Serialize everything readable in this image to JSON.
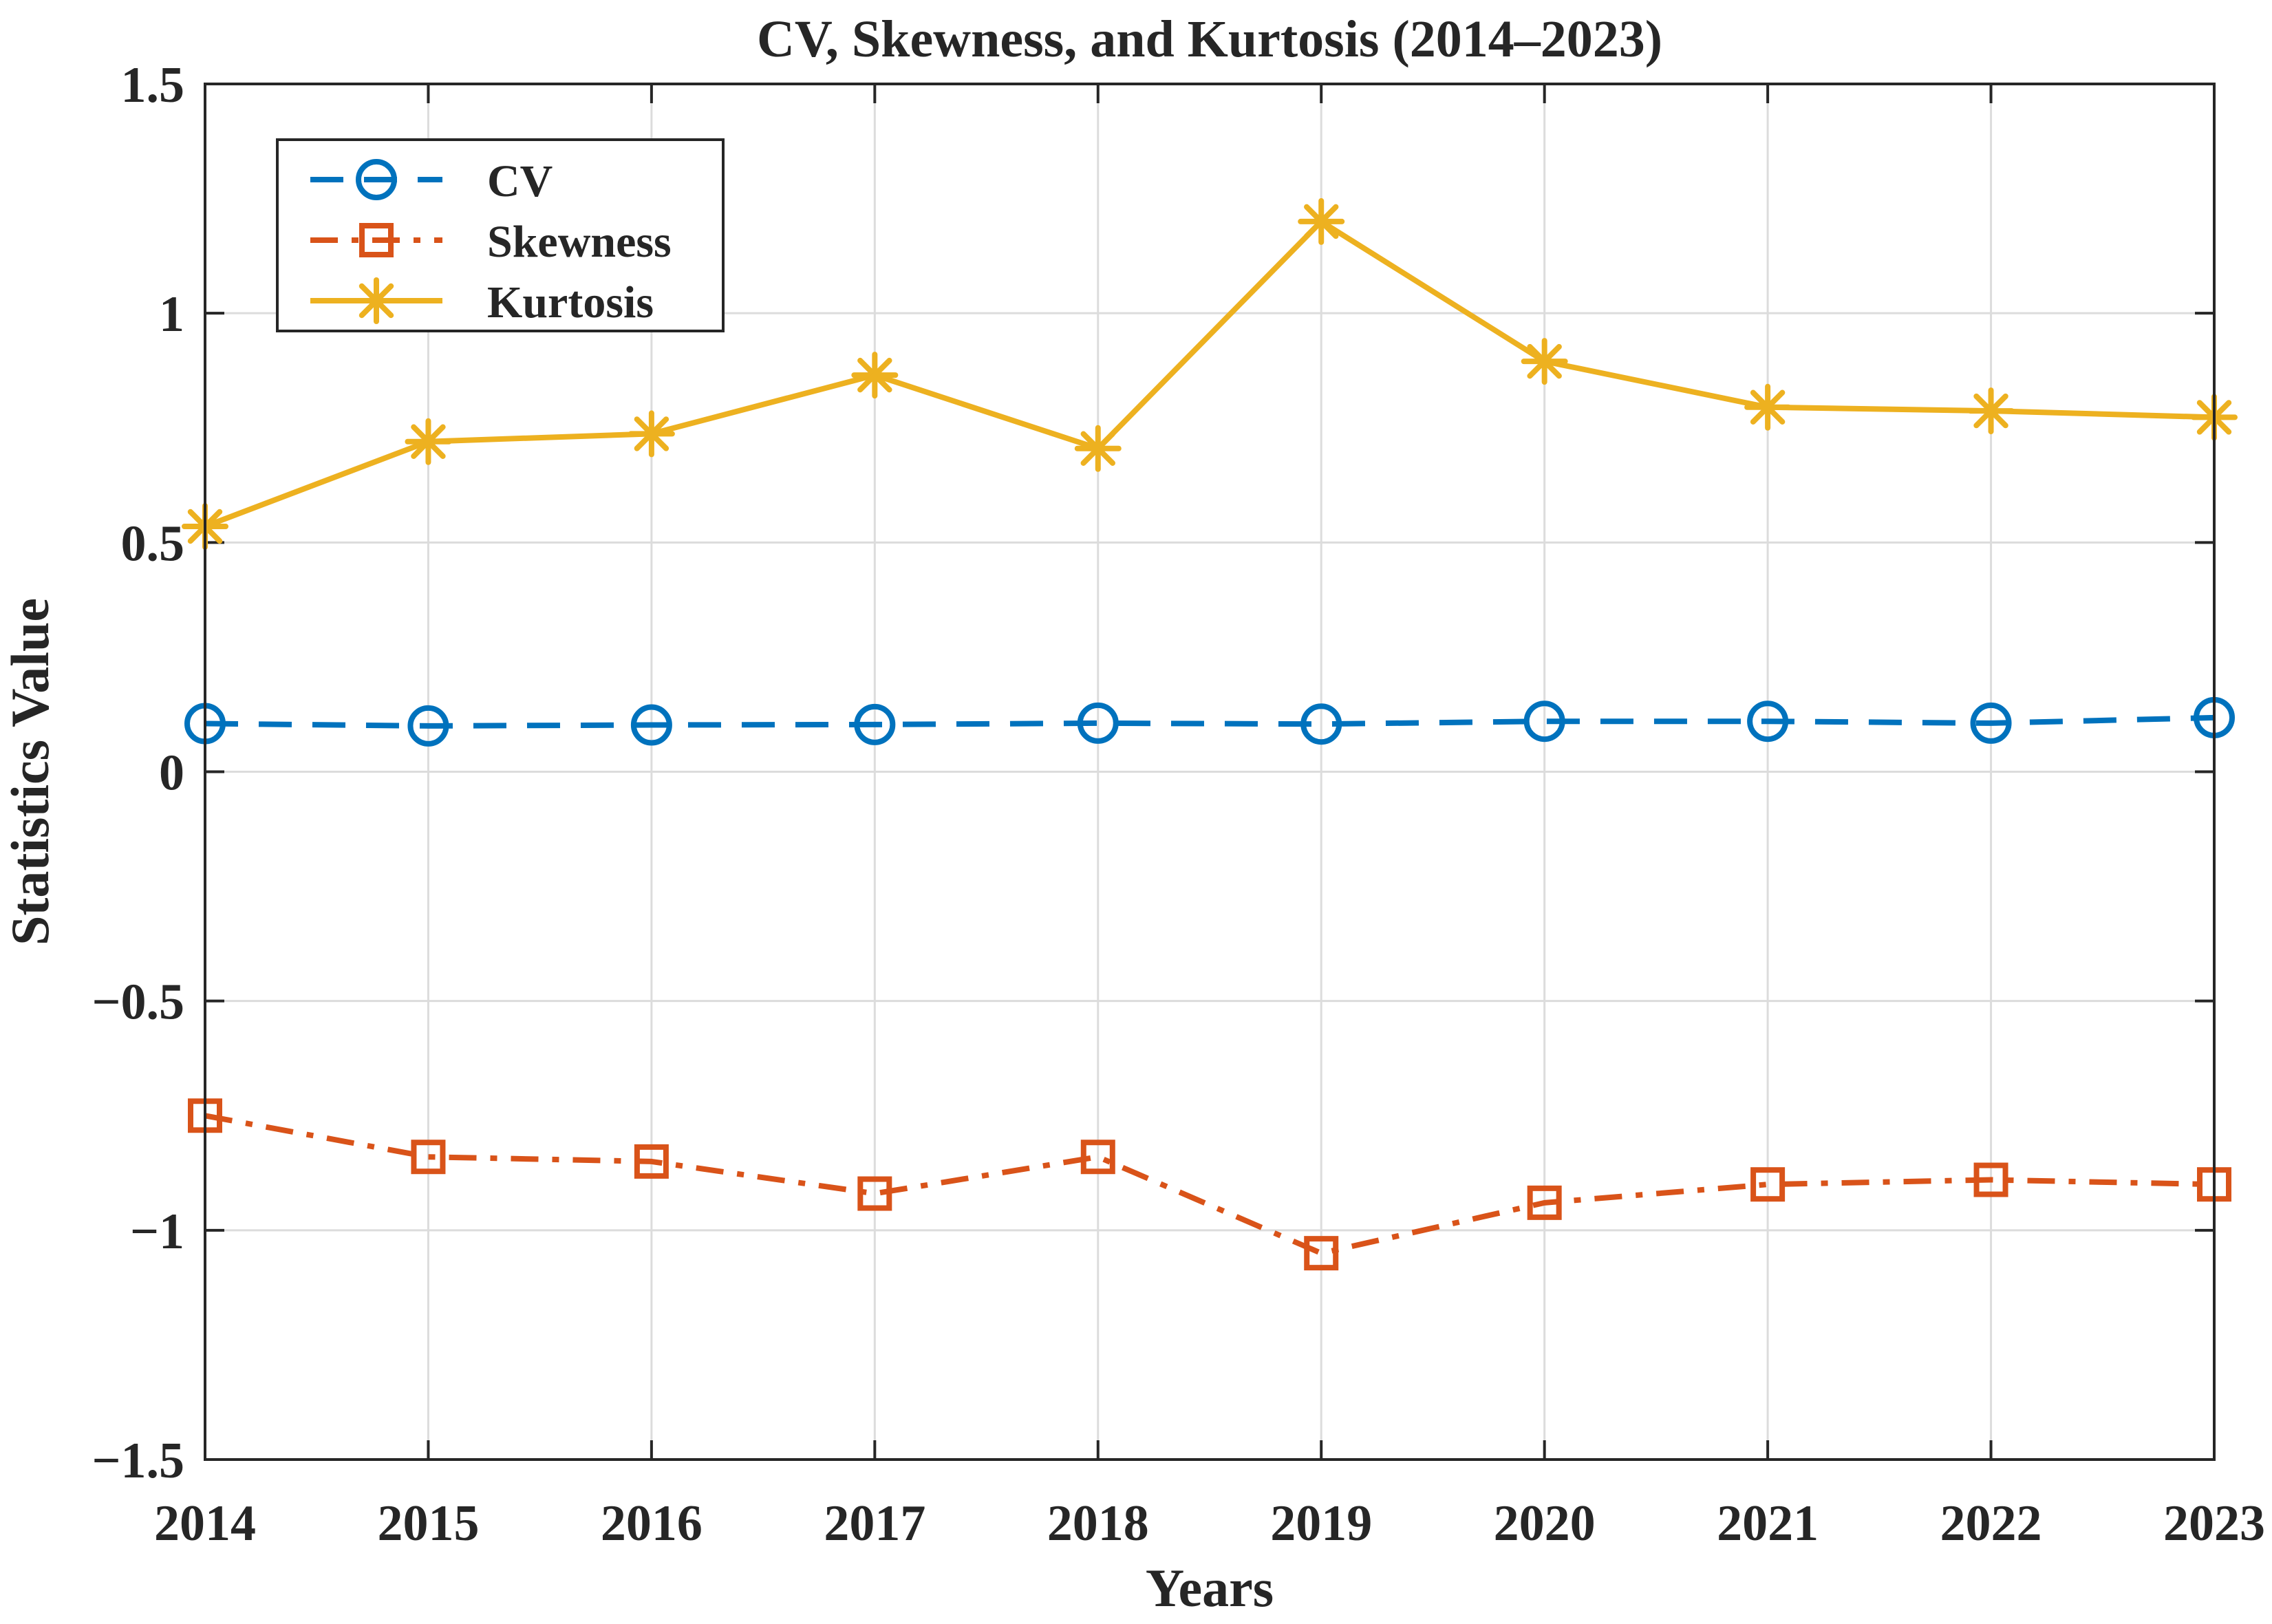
{
  "chart_data": {
    "type": "line",
    "title": "CV, Skewness, and Kurtosis (2014–2023)",
    "xlabel": "Years",
    "ylabel": "Statistics Value",
    "x": [
      2014,
      2015,
      2016,
      2017,
      2018,
      2019,
      2020,
      2021,
      2022,
      2023
    ],
    "xlim": [
      2014,
      2023
    ],
    "ylim": [
      -1.5,
      1.5
    ],
    "yticks": [
      -1.5,
      -1,
      -0.5,
      0,
      0.5,
      1,
      1.5
    ],
    "ytick_labels": [
      "−1.5",
      "−1",
      "−0.5",
      "0",
      "0.5",
      "1",
      "1.5"
    ],
    "grid": true,
    "legend_position": "top-left",
    "series": [
      {
        "name": "CV",
        "color": "#0072BD",
        "line_style": "dashed",
        "marker": "circle",
        "values": [
          0.105,
          0.1,
          0.102,
          0.103,
          0.106,
          0.104,
          0.11,
          0.11,
          0.106,
          0.118
        ]
      },
      {
        "name": "Skewness",
        "color": "#D95319",
        "line_style": "dash-dot",
        "marker": "square",
        "values": [
          -0.75,
          -0.84,
          -0.85,
          -0.92,
          -0.84,
          -1.05,
          -0.94,
          -0.9,
          -0.89,
          -0.9
        ]
      },
      {
        "name": "Kurtosis",
        "color": "#EDB120",
        "line_style": "solid",
        "marker": "asterisk",
        "values": [
          0.535,
          0.72,
          0.737,
          0.865,
          0.705,
          1.2,
          0.895,
          0.795,
          0.787,
          0.773
        ]
      }
    ]
  }
}
